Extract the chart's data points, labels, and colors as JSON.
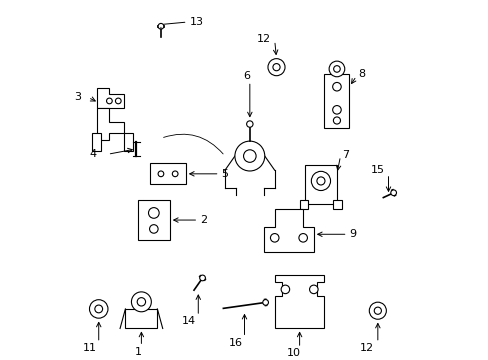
{
  "bg_color": "#ffffff",
  "line_color": "#000000",
  "labels": {
    "1": [
      0.21,
      0.13,
      0.21,
      0.03
    ],
    "2": [
      0.27,
      0.38,
      0.37,
      0.38
    ],
    "3": [
      0.16,
      0.73,
      0.06,
      0.73
    ],
    "4": [
      0.2,
      0.59,
      0.11,
      0.57
    ],
    "5": [
      0.32,
      0.52,
      0.43,
      0.52
    ],
    "6": [
      0.52,
      0.7,
      0.52,
      0.77
    ],
    "7": [
      0.72,
      0.5,
      0.76,
      0.57
    ],
    "8": [
      0.77,
      0.76,
      0.81,
      0.8
    ],
    "9": [
      0.7,
      0.35,
      0.79,
      0.35
    ],
    "10": [
      0.65,
      0.09,
      0.65,
      0.02
    ],
    "11": [
      0.09,
      0.11,
      0.09,
      0.03
    ],
    "12a": [
      0.59,
      0.81,
      0.58,
      0.89
    ],
    "12b": [
      0.88,
      0.11,
      0.88,
      0.03
    ],
    "13": [
      0.27,
      0.91,
      0.34,
      0.94
    ],
    "14": [
      0.37,
      0.19,
      0.37,
      0.11
    ],
    "15": [
      0.91,
      0.44,
      0.91,
      0.51
    ],
    "16": [
      0.5,
      0.13,
      0.5,
      0.05
    ]
  }
}
